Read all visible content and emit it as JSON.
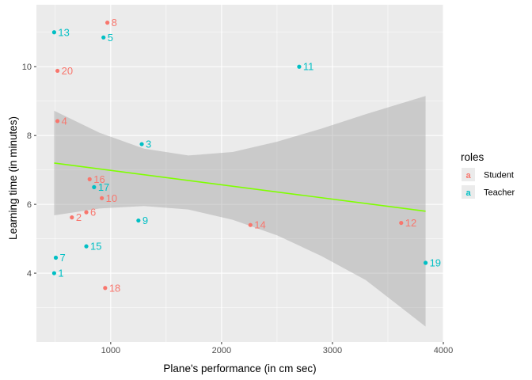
{
  "chart_data": {
    "type": "scatter",
    "xlabel": "Plane's performance (in cm sec)",
    "ylabel": "Learning time (in minutes)",
    "xlim": [
      330,
      4000
    ],
    "ylim": [
      2.0,
      11.8
    ],
    "x_ticks": [
      1000,
      2000,
      3000,
      4000
    ],
    "y_ticks": [
      4,
      6,
      8,
      10
    ],
    "grid": true,
    "legend": {
      "title": "roles",
      "placement": "right",
      "items": [
        {
          "label": "Student",
          "color": "#F8766D",
          "key_glyph": "a"
        },
        {
          "label": "Teacher",
          "color": "#00BFC4",
          "key_glyph": "a"
        }
      ]
    },
    "points": [
      {
        "label": "1",
        "x": 490,
        "y": 4.0,
        "role": "Teacher"
      },
      {
        "label": "2",
        "x": 650,
        "y": 5.62,
        "role": "Student"
      },
      {
        "label": "3",
        "x": 1280,
        "y": 7.75,
        "role": "Teacher"
      },
      {
        "label": "4",
        "x": 520,
        "y": 8.42,
        "role": "Student"
      },
      {
        "label": "5",
        "x": 935,
        "y": 10.85,
        "role": "Teacher"
      },
      {
        "label": "6",
        "x": 780,
        "y": 5.77,
        "role": "Student"
      },
      {
        "label": "7",
        "x": 505,
        "y": 4.45,
        "role": "Teacher"
      },
      {
        "label": "8",
        "x": 970,
        "y": 11.28,
        "role": "Student"
      },
      {
        "label": "9",
        "x": 1250,
        "y": 5.53,
        "role": "Teacher"
      },
      {
        "label": "10",
        "x": 920,
        "y": 6.18,
        "role": "Student"
      },
      {
        "label": "11",
        "x": 2700,
        "y": 10.0,
        "role": "Teacher"
      },
      {
        "label": "12",
        "x": 3620,
        "y": 5.46,
        "role": "Student"
      },
      {
        "label": "13",
        "x": 490,
        "y": 11.0,
        "role": "Teacher"
      },
      {
        "label": "14",
        "x": 2260,
        "y": 5.4,
        "role": "Student"
      },
      {
        "label": "15",
        "x": 780,
        "y": 4.78,
        "role": "Teacher"
      },
      {
        "label": "16",
        "x": 810,
        "y": 6.73,
        "role": "Student"
      },
      {
        "label": "17",
        "x": 850,
        "y": 6.5,
        "role": "Teacher"
      },
      {
        "label": "18",
        "x": 950,
        "y": 3.57,
        "role": "Student"
      },
      {
        "label": "19",
        "x": 3840,
        "y": 4.3,
        "role": "Teacher"
      },
      {
        "label": "20",
        "x": 520,
        "y": 9.88,
        "role": "Student"
      }
    ],
    "fit": {
      "method": "linear",
      "color": "#7FFF00",
      "line": [
        [
          490,
          7.2
        ],
        [
          3840,
          5.8
        ]
      ],
      "band": [
        [
          490,
          5.68,
          8.72
        ],
        [
          900,
          5.88,
          8.08
        ],
        [
          1300,
          5.95,
          7.62
        ],
        [
          1700,
          5.85,
          7.42
        ],
        [
          2100,
          5.55,
          7.52
        ],
        [
          2500,
          5.1,
          7.82
        ],
        [
          2900,
          4.5,
          8.2
        ],
        [
          3300,
          3.8,
          8.62
        ],
        [
          3840,
          2.45,
          9.15
        ]
      ],
      "band_color": "#999999"
    }
  }
}
